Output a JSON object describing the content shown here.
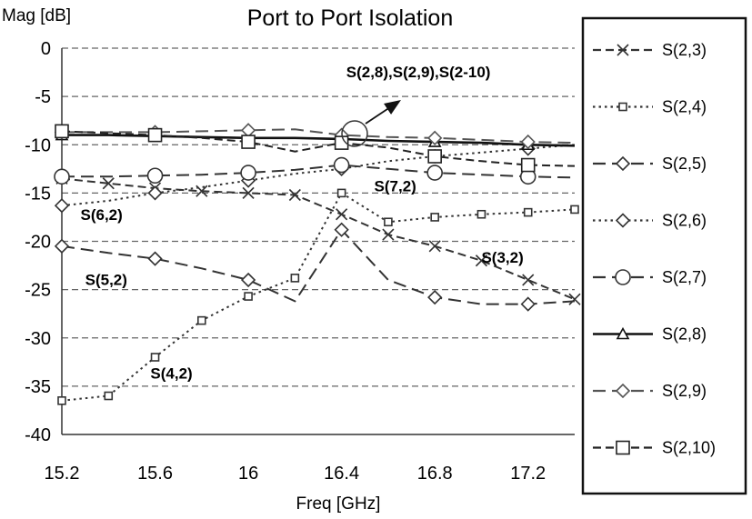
{
  "chart_data": {
    "type": "line",
    "title": "Port to Port Isolation",
    "xlabel": "Freq [GHz]",
    "ylabel": "Mag [dB]",
    "xlim": [
      15.2,
      17.4
    ],
    "ylim": [
      -40,
      0
    ],
    "xticks": [
      15.2,
      15.6,
      16,
      16.4,
      16.8,
      17.2
    ],
    "xtick_labels": [
      "15.2",
      "15.6",
      "16",
      "16.4",
      "16.8",
      "17.2"
    ],
    "yticks": [
      0,
      -5,
      -10,
      -15,
      -20,
      -25,
      -30,
      -35,
      -40
    ],
    "ytick_labels": [
      "0",
      "-5",
      "-10",
      "-15",
      "-20",
      "-25",
      "-30",
      "-35",
      "-40"
    ],
    "grid": "horizontal dashed",
    "legend_position": "right",
    "series": [
      {
        "name": "S(2,3)",
        "style": "dash",
        "marker": "x",
        "color": "#333333",
        "x": [
          15.2,
          15.4,
          15.6,
          15.8,
          16.0,
          16.2,
          16.4,
          16.6,
          16.8,
          17.0,
          17.2,
          17.4
        ],
        "y": [
          -13.5,
          -14.0,
          -14.5,
          -14.8,
          -15.0,
          -15.2,
          -17.2,
          -19.3,
          -20.5,
          -22.0,
          -24.0,
          -26.0
        ]
      },
      {
        "name": "S(2,4)",
        "style": "dot",
        "marker": "square-small",
        "color": "#333333",
        "x": [
          15.2,
          15.4,
          15.6,
          15.8,
          16.0,
          16.2,
          16.4,
          16.6,
          16.8,
          17.0,
          17.2,
          17.4
        ],
        "y": [
          -36.5,
          -36.0,
          -32.0,
          -28.2,
          -25.7,
          -23.8,
          -15.0,
          -18.0,
          -17.5,
          -17.2,
          -17.0,
          -16.7
        ]
      },
      {
        "name": "S(2,5)",
        "style": "dashlong",
        "marker": "diamond",
        "color": "#333333",
        "x": [
          15.2,
          15.4,
          15.6,
          15.8,
          16.0,
          16.2,
          16.4,
          16.6,
          16.8,
          17.0,
          17.2,
          17.4
        ],
        "y": [
          -20.5,
          -21.2,
          -21.8,
          -22.8,
          -24.0,
          -26.2,
          -18.8,
          -24.0,
          -25.8,
          -26.5,
          -26.5,
          -26.2
        ]
      },
      {
        "name": "S(2,6)",
        "style": "dot",
        "marker": "diamond",
        "color": "#333333",
        "x": [
          15.2,
          15.4,
          15.6,
          15.8,
          16.0,
          16.2,
          16.4,
          16.6,
          16.8,
          17.0,
          17.2,
          17.4
        ],
        "y": [
          -16.3,
          -15.8,
          -15.0,
          -14.4,
          -13.7,
          -13.0,
          -12.5,
          -11.7,
          -11.2,
          -10.8,
          -10.4,
          -10.0
        ]
      },
      {
        "name": "S(2,7)",
        "style": "dashlong",
        "marker": "circle",
        "color": "#333333",
        "x": [
          15.2,
          15.4,
          15.6,
          15.8,
          16.0,
          16.2,
          16.4,
          16.6,
          16.8,
          17.0,
          17.2,
          17.4
        ],
        "y": [
          -13.3,
          -13.3,
          -13.2,
          -13.1,
          -12.9,
          -12.6,
          -12.1,
          -12.5,
          -12.9,
          -13.1,
          -13.3,
          -13.4
        ]
      },
      {
        "name": "S(2,8)",
        "style": "solid",
        "marker": "triangle",
        "color": "#111111",
        "x": [
          15.2,
          15.4,
          15.6,
          15.8,
          16.0,
          16.2,
          16.4,
          16.6,
          16.8,
          17.0,
          17.2,
          17.4
        ],
        "y": [
          -9.0,
          -9.0,
          -9.1,
          -9.2,
          -9.3,
          -9.3,
          -9.4,
          -9.6,
          -9.7,
          -9.8,
          -10.0,
          -10.1
        ]
      },
      {
        "name": "S(2,9)",
        "style": "dashlong",
        "marker": "diamond",
        "color": "#555555",
        "x": [
          15.2,
          15.4,
          15.6,
          15.8,
          16.0,
          16.2,
          16.4,
          16.6,
          16.8,
          17.0,
          17.2,
          17.4
        ],
        "y": [
          -8.7,
          -8.7,
          -8.7,
          -8.6,
          -8.5,
          -8.4,
          -9.0,
          -9.2,
          -9.3,
          -9.5,
          -9.7,
          -9.8
        ]
      },
      {
        "name": "S(2,10)",
        "style": "dash",
        "marker": "square",
        "color": "#222222",
        "x": [
          15.2,
          15.4,
          15.6,
          15.8,
          16.0,
          16.2,
          16.4,
          16.6,
          16.8,
          17.0,
          17.2,
          17.4
        ],
        "y": [
          -8.6,
          -8.8,
          -9.0,
          -9.3,
          -9.7,
          -10.7,
          -9.8,
          -10.3,
          -11.2,
          -11.7,
          -12.1,
          -12.2
        ]
      }
    ],
    "annotations": [
      {
        "text": "S(2,8),S(2,9),S(2-10)",
        "x": 16.42,
        "y": -3.0
      },
      {
        "text": "S(7,2)",
        "x": 16.54,
        "y": -14.8
      },
      {
        "text": "S(6,2)",
        "x": 15.28,
        "y": -17.8
      },
      {
        "text": "S(3,2)",
        "x": 17.0,
        "y": -22.2
      },
      {
        "text": "S(5,2)",
        "x": 15.3,
        "y": -24.5
      },
      {
        "text": "S(4,2)",
        "x": 15.58,
        "y": -34.2
      }
    ]
  }
}
